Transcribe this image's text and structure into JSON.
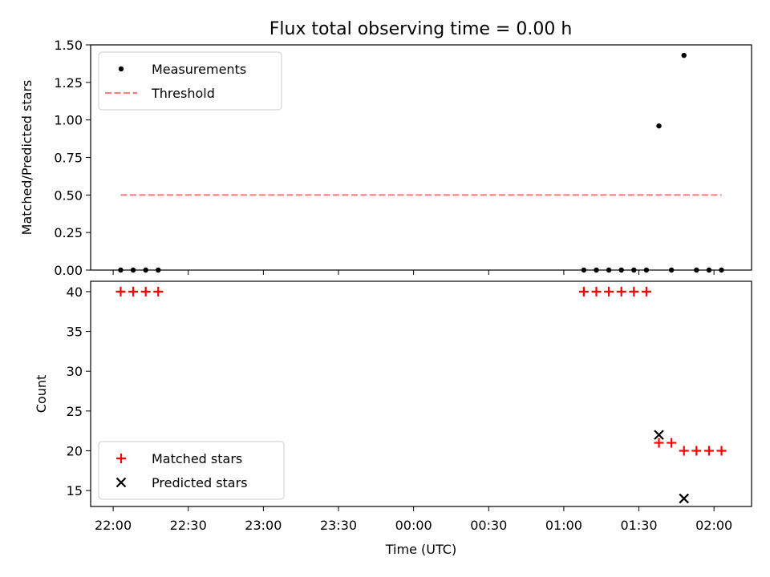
{
  "figure": {
    "title": "Flux total observing time = 0.00 h"
  },
  "chart_data": [
    {
      "type": "scatter",
      "ylabel": "Matched/Predicted stars",
      "xlim": [
        "21:51",
        "02:15"
      ],
      "ylim": [
        0,
        1.5
      ],
      "yticks": [
        "0.00",
        "0.25",
        "0.50",
        "0.75",
        "1.00",
        "1.25",
        "1.50"
      ],
      "ytick_values": [
        0,
        0.25,
        0.5,
        0.75,
        1.0,
        1.25,
        1.5
      ],
      "legend_position": "upper-left",
      "series": [
        {
          "name": "Measurements",
          "marker": "dot",
          "color": "#000000",
          "points": [
            [
              "22:03",
              0
            ],
            [
              "22:08",
              0
            ],
            [
              "22:13",
              0
            ],
            [
              "22:18",
              0
            ],
            [
              "01:08",
              0
            ],
            [
              "01:13",
              0
            ],
            [
              "01:18",
              0
            ],
            [
              "01:23",
              0
            ],
            [
              "01:28",
              0
            ],
            [
              "01:33",
              0
            ],
            [
              "01:38",
              0.96
            ],
            [
              "01:43",
              0
            ],
            [
              "01:48",
              1.43
            ],
            [
              "01:53",
              0
            ],
            [
              "01:58",
              0
            ],
            [
              "02:03",
              0
            ]
          ]
        },
        {
          "name": "Threshold",
          "style": "dashed",
          "color": "#ff7f7f",
          "points": [
            [
              "22:03",
              0.5
            ],
            [
              "02:03",
              0.5
            ]
          ]
        }
      ]
    },
    {
      "type": "scatter",
      "xlabel": "Time (UTC)",
      "ylabel": "Count",
      "xlim": [
        "21:51",
        "02:15"
      ],
      "ylim": [
        13,
        41.3
      ],
      "yticks": [
        "15",
        "20",
        "25",
        "30",
        "35",
        "40"
      ],
      "ytick_values": [
        15,
        20,
        25,
        30,
        35,
        40
      ],
      "xticks": [
        "22:00",
        "22:30",
        "23:00",
        "23:30",
        "00:00",
        "00:30",
        "01:00",
        "01:30",
        "02:00"
      ],
      "legend_position": "lower-left",
      "series": [
        {
          "name": "Matched stars",
          "marker": "plus",
          "color": "#ff0000",
          "points": [
            [
              "22:03",
              40
            ],
            [
              "22:08",
              40
            ],
            [
              "22:13",
              40
            ],
            [
              "22:18",
              40
            ],
            [
              "01:08",
              40
            ],
            [
              "01:13",
              40
            ],
            [
              "01:18",
              40
            ],
            [
              "01:23",
              40
            ],
            [
              "01:28",
              40
            ],
            [
              "01:33",
              40
            ],
            [
              "01:38",
              21
            ],
            [
              "01:43",
              21
            ],
            [
              "01:48",
              20
            ],
            [
              "01:53",
              20
            ],
            [
              "01:58",
              20
            ],
            [
              "02:03",
              20
            ]
          ]
        },
        {
          "name": "Predicted stars",
          "marker": "x",
          "color": "#000000",
          "points": [
            [
              "01:38",
              22
            ],
            [
              "01:48",
              14
            ]
          ]
        }
      ]
    }
  ]
}
